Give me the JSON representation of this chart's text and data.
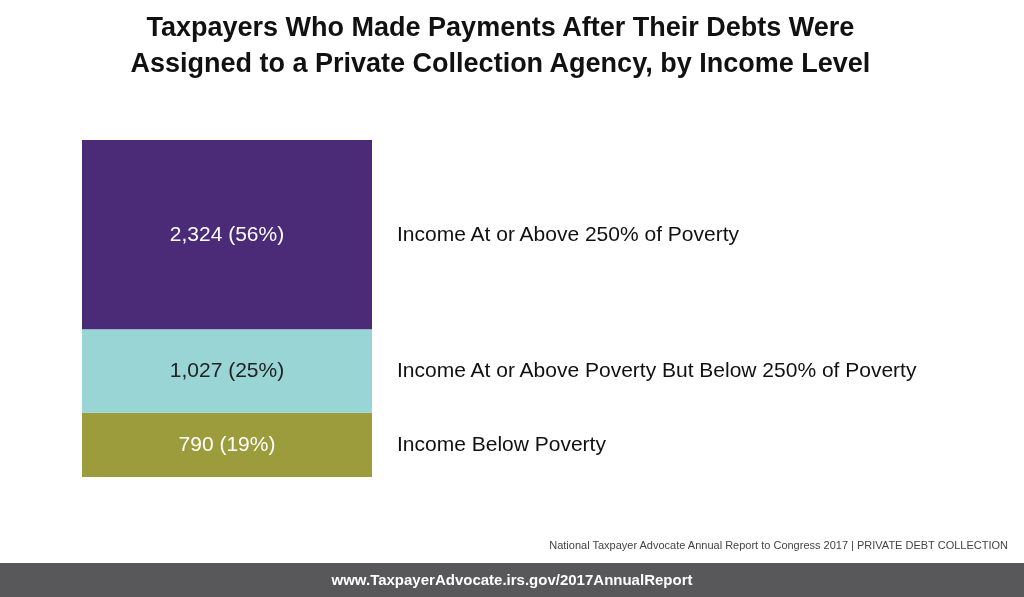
{
  "chart_data": {
    "type": "bar",
    "title": "Taxpayers Who Made Payments After Their Debts Were Assigned to a Private Collection Agency, by Income Level",
    "stacked": true,
    "tick_labels": false,
    "categories": [
      null
    ],
    "series": [
      {
        "name": "Income Below Poverty",
        "color": "#9c9c3c",
        "values": [
          790
        ],
        "value_labels": [
          "790 (19%)"
        ]
      },
      {
        "name": "Income At or Above Poverty But Below 250% of Poverty",
        "color": "#99d5d5",
        "values": [
          1027
        ],
        "value_labels": [
          "1,027 (25%)"
        ]
      },
      {
        "name": "Income At or Above 250% of Poverty",
        "color": "#4b2a78",
        "values": [
          2324
        ],
        "value_labels": [
          "2,324 (56%)"
        ]
      }
    ],
    "annotations": [
      "National Taxpayer Advocate Annual Report to Congress 2017 | PRIVATE DEBT COLLECTION",
      "www.TaxpayerAdvocate.irs.gov/2017AnnualReport"
    ]
  }
}
